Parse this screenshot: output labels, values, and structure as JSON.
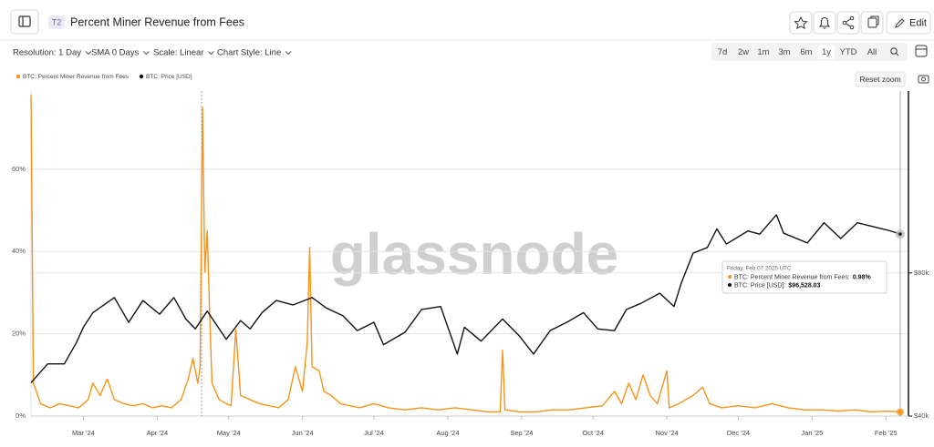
{
  "ui": {
    "badge": "T2",
    "title": "Percent Miner Revenue from Fees",
    "edit": "Edit",
    "controls": [
      "Resolution: 1 Day",
      "SMA 0 Days",
      "Scale: Linear",
      "Chart Style: Line"
    ],
    "ranges": [
      "7d",
      "2w",
      "1m",
      "3m",
      "6m",
      "1y",
      "YTD",
      "All"
    ],
    "reset_zoom": "Reset zoom",
    "watermark": "glassnode"
  },
  "chart_data": {
    "type": "line",
    "xlim": [
      "2024-02-08",
      "2025-02-07"
    ],
    "xticks": [
      {
        "value": "2024-03-01",
        "label": "Mar '24"
      },
      {
        "value": "2024-04-01",
        "label": "Apr '24"
      },
      {
        "value": "2024-05-01",
        "label": "May '24"
      },
      {
        "value": "2024-06-01",
        "label": "Jun '24"
      },
      {
        "value": "2024-07-01",
        "label": "Jul '24"
      },
      {
        "value": "2024-08-01",
        "label": "Aug '24"
      },
      {
        "value": "2024-09-01",
        "label": "Sep '24"
      },
      {
        "value": "2024-10-01",
        "label": "Oct '24"
      },
      {
        "value": "2024-11-01",
        "label": "Nov '24"
      },
      {
        "value": "2024-12-01",
        "label": "Dec '24"
      },
      {
        "value": "2025-01-01",
        "label": "Jan '25"
      },
      {
        "value": "2025-02-01",
        "label": "Feb '25"
      }
    ],
    "ylim": [
      0,
      79
    ],
    "yticks": [
      {
        "value": 0,
        "label": "0%"
      },
      {
        "value": 20,
        "label": "20%"
      },
      {
        "value": 40,
        "label": "40%"
      },
      {
        "value": 60,
        "label": "60%"
      }
    ],
    "y2lim": [
      40000,
      193000
    ],
    "y2scale": "log",
    "y2ticks": [
      {
        "value": 40000,
        "label": "$40k"
      },
      {
        "value": 80000,
        "label": "$80k"
      }
    ],
    "grid": true,
    "series": [
      {
        "name": "BTC: Percent Miner Revenue from Fees",
        "color": "#f7931a",
        "x": [
          "2024-02-08",
          "2024-02-09",
          "2024-02-12",
          "2024-02-16",
          "2024-02-20",
          "2024-02-24",
          "2024-02-28",
          "2024-03-03",
          "2024-03-05",
          "2024-03-08",
          "2024-03-11",
          "2024-03-14",
          "2024-03-18",
          "2024-03-22",
          "2024-03-26",
          "2024-03-30",
          "2024-04-03",
          "2024-04-07",
          "2024-04-11",
          "2024-04-14",
          "2024-04-16",
          "2024-04-18",
          "2024-04-19",
          "2024-04-20",
          "2024-04-21",
          "2024-04-22",
          "2024-04-23",
          "2024-04-24",
          "2024-04-27",
          "2024-04-30",
          "2024-05-02",
          "2024-05-04",
          "2024-05-06",
          "2024-05-10",
          "2024-05-14",
          "2024-05-18",
          "2024-05-22",
          "2024-05-26",
          "2024-05-29",
          "2024-06-01",
          "2024-06-03",
          "2024-06-04",
          "2024-06-05",
          "2024-06-08",
          "2024-06-10",
          "2024-06-13",
          "2024-06-17",
          "2024-06-21",
          "2024-06-25",
          "2024-07-01",
          "2024-07-07",
          "2024-07-14",
          "2024-07-21",
          "2024-07-28",
          "2024-08-04",
          "2024-08-11",
          "2024-08-18",
          "2024-08-23",
          "2024-08-24",
          "2024-08-25",
          "2024-08-31",
          "2024-09-07",
          "2024-09-14",
          "2024-09-21",
          "2024-09-28",
          "2024-10-05",
          "2024-10-10",
          "2024-10-13",
          "2024-10-16",
          "2024-10-19",
          "2024-10-22",
          "2024-10-25",
          "2024-10-28",
          "2024-11-01",
          "2024-11-02",
          "2024-11-06",
          "2024-11-12",
          "2024-11-16",
          "2024-11-19",
          "2024-11-24",
          "2024-12-01",
          "2024-12-08",
          "2024-12-15",
          "2024-12-22",
          "2024-12-29",
          "2025-01-05",
          "2025-01-12",
          "2025-01-19",
          "2025-01-26",
          "2025-02-02",
          "2025-02-07"
        ],
        "values": [
          78,
          8,
          3,
          2,
          3,
          2.5,
          2,
          4,
          8,
          5,
          9,
          4,
          3,
          2.5,
          3,
          2,
          2.5,
          2,
          4,
          9,
          14,
          8,
          12,
          75,
          35,
          45,
          25,
          8,
          4,
          3,
          2.5,
          21,
          5,
          4,
          3,
          2.5,
          2,
          4,
          12,
          6,
          18,
          41,
          12,
          11,
          6,
          5,
          3,
          2.5,
          2,
          3,
          2,
          1.5,
          2,
          1.5,
          2,
          1.5,
          1,
          1,
          16,
          1.5,
          1,
          1,
          1.5,
          1.5,
          2,
          2.5,
          6,
          3,
          8,
          4,
          10,
          5,
          3,
          11,
          2,
          3,
          5,
          7,
          3,
          2,
          2.5,
          2,
          3,
          2,
          1.5,
          1.5,
          1.2,
          1.5,
          1,
          1.2,
          0.98
        ]
      },
      {
        "name": "BTC: Price [USD]",
        "color": "#111111",
        "axis": "y2",
        "x": [
          "2024-02-08",
          "2024-02-15",
          "2024-02-22",
          "2024-02-27",
          "2024-03-01",
          "2024-03-05",
          "2024-03-14",
          "2024-03-20",
          "2024-03-26",
          "2024-04-02",
          "2024-04-08",
          "2024-04-13",
          "2024-04-17",
          "2024-04-22",
          "2024-04-30",
          "2024-05-06",
          "2024-05-10",
          "2024-05-15",
          "2024-05-21",
          "2024-05-28",
          "2024-06-05",
          "2024-06-11",
          "2024-06-18",
          "2024-06-24",
          "2024-07-01",
          "2024-07-05",
          "2024-07-14",
          "2024-07-21",
          "2024-07-29",
          "2024-08-05",
          "2024-08-08",
          "2024-08-15",
          "2024-08-24",
          "2024-08-31",
          "2024-09-06",
          "2024-09-13",
          "2024-09-20",
          "2024-09-27",
          "2024-10-03",
          "2024-10-10",
          "2024-10-15",
          "2024-10-21",
          "2024-10-29",
          "2024-11-04",
          "2024-11-07",
          "2024-11-12",
          "2024-11-18",
          "2024-11-22",
          "2024-11-26",
          "2024-12-05",
          "2024-12-10",
          "2024-12-17",
          "2024-12-20",
          "2024-12-30",
          "2025-01-06",
          "2025-01-13",
          "2025-01-20",
          "2025-01-27",
          "2025-02-03",
          "2025-02-07"
        ],
        "values": [
          47000,
          51500,
          51500,
          57000,
          61500,
          66000,
          71000,
          63000,
          70000,
          65500,
          71000,
          64000,
          61000,
          66500,
          58000,
          63500,
          61000,
          66000,
          70000,
          68500,
          71000,
          67500,
          65000,
          60500,
          63000,
          56500,
          60000,
          67000,
          68000,
          54000,
          61500,
          57500,
          64000,
          59000,
          54000,
          60500,
          63000,
          66000,
          61000,
          60500,
          67000,
          69000,
          72500,
          68000,
          76000,
          88000,
          90500,
          99000,
          92000,
          98000,
          96500,
          106000,
          97000,
          92500,
          102000,
          94500,
          102000,
          100000,
          98000,
          96528.03
        ]
      }
    ],
    "tooltip": {
      "date": "Friday, Feb 07 2025 UTC",
      "rows": [
        {
          "label": "BTC: Percent Miner Revenue from Fees:",
          "value": "0.98%"
        },
        {
          "label": "BTC: Price [USD]:",
          "value": "$96,528.03"
        }
      ]
    }
  }
}
